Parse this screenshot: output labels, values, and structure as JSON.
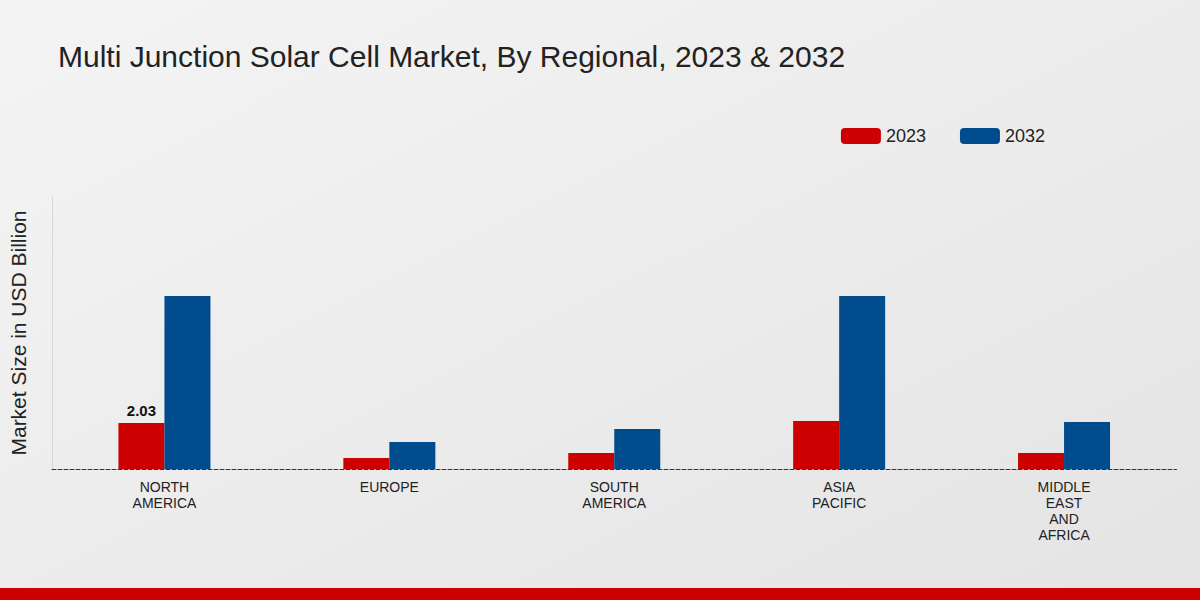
{
  "chart_data": {
    "type": "bar",
    "title": "Multi Junction Solar Cell Market, By Regional, 2023 & 2032",
    "y_label": "Market Size in USD Billion",
    "categories": [
      "NORTH\nAMERICA",
      "EUROPE",
      "SOUTH\nAMERICA",
      "ASIA\nPACIFIC",
      "MIDDLE\nEAST\nAND\nAFRICA"
    ],
    "series": [
      {
        "name": "2023",
        "color": "#cc0000",
        "values": [
          2.03,
          0.49,
          0.71,
          2.12,
          0.71
        ],
        "value_labels": [
          "2.03",
          null,
          null,
          null,
          null
        ]
      },
      {
        "name": "2032",
        "color": "#004c8c",
        "values": [
          7.63,
          1.19,
          1.77,
          7.63,
          2.07
        ]
      }
    ],
    "ylim": [
      0,
      12
    ],
    "grid": false,
    "legend": "top-right",
    "tick_labels": "x"
  }
}
